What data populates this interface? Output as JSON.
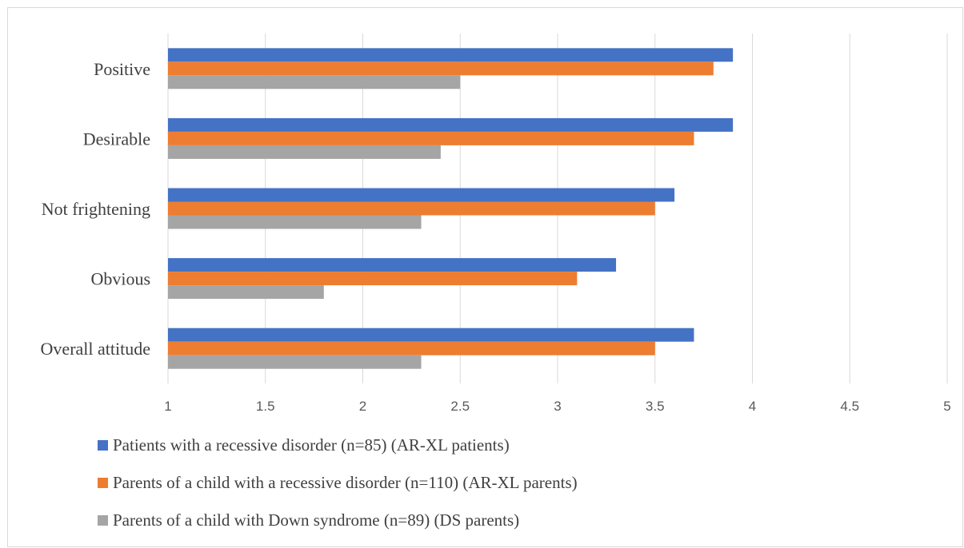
{
  "chart_data": {
    "type": "bar",
    "orientation": "horizontal",
    "categories": [
      "Positive",
      "Desirable",
      "Not frightening",
      "Obvious",
      "Overall attitude"
    ],
    "series": [
      {
        "name": "Patients with a recessive disorder (n=85) (AR-XL patients)",
        "color": "#4472c4",
        "values": [
          3.9,
          3.9,
          3.6,
          3.3,
          3.7
        ]
      },
      {
        "name": "Parents of a child with a recessive disorder (n=110) (AR-XL parents)",
        "color": "#ed7d31",
        "values": [
          3.8,
          3.7,
          3.5,
          3.1,
          3.5
        ]
      },
      {
        "name": "Parents of a child with Down syndrome (n=89) (DS parents)",
        "color": "#a5a5a5",
        "values": [
          2.5,
          2.4,
          2.3,
          1.8,
          2.3
        ]
      }
    ],
    "xlim": [
      1,
      5
    ],
    "x_ticks": [
      "1",
      "1.5",
      "2",
      "2.5",
      "3",
      "3.5",
      "4",
      "4.5",
      "5"
    ],
    "grid": "vertical",
    "legend_position": "bottom-left",
    "title": "",
    "xlabel": "",
    "ylabel": ""
  }
}
